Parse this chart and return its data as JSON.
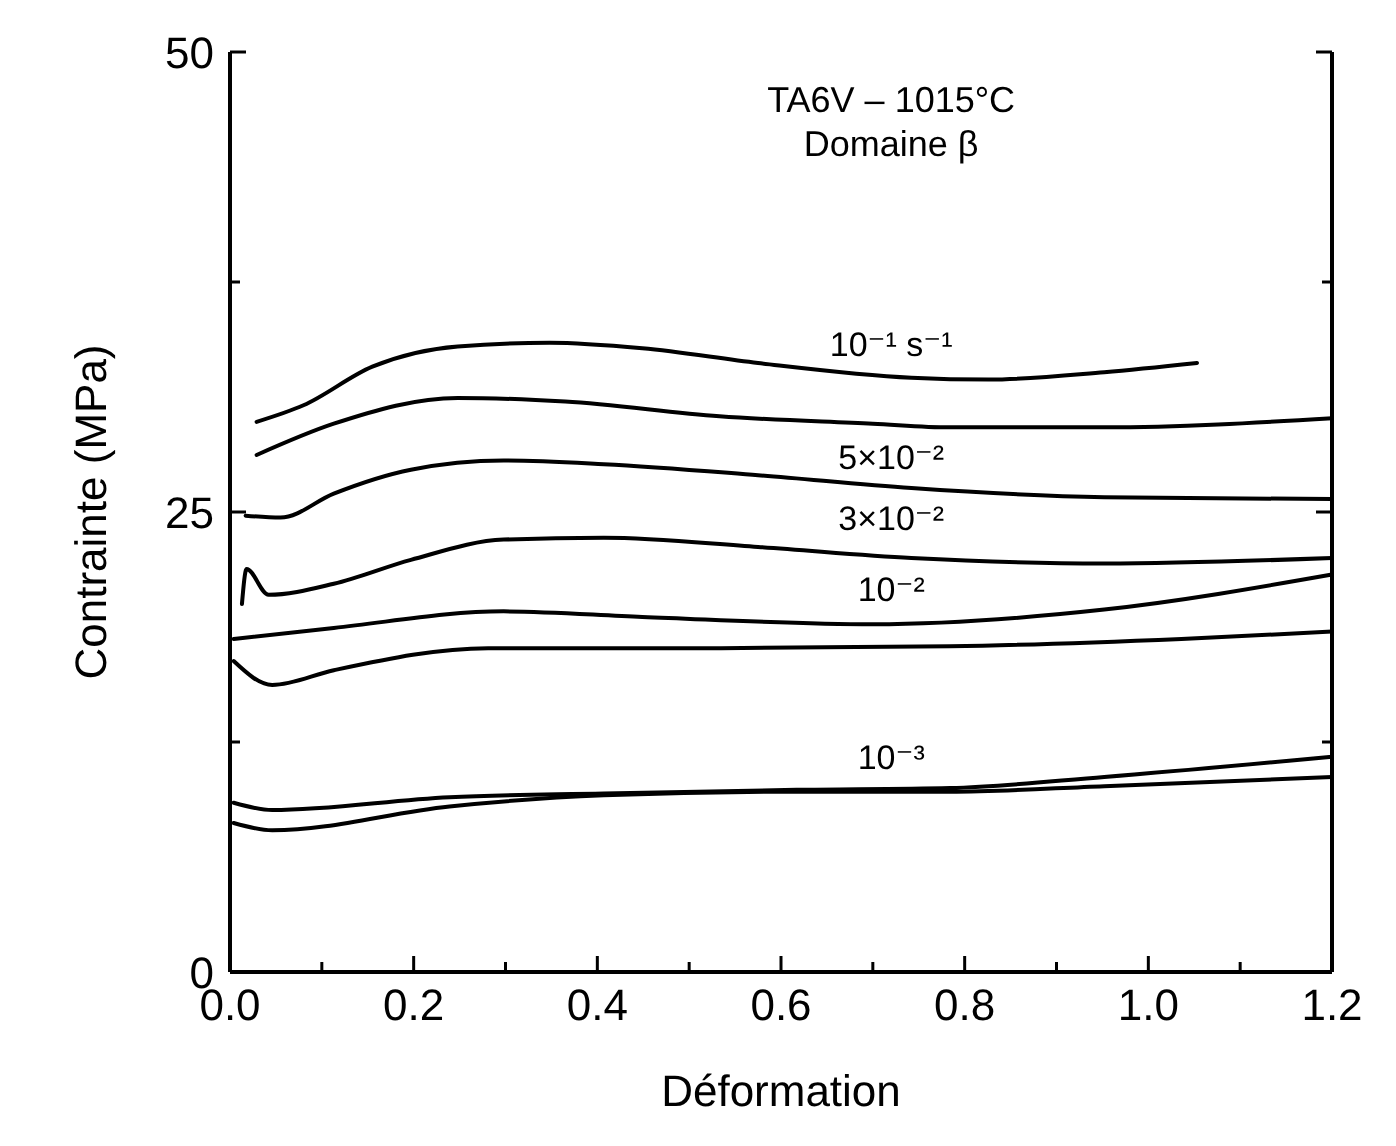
{
  "chart_data": {
    "type": "line",
    "title": "TA6V – 1015°C",
    "subtitle": "Domaine β",
    "xlabel": "Déformation",
    "ylabel": "Contrainte (MPa)",
    "xlim": [
      0,
      1.2
    ],
    "ylim": [
      0,
      50
    ],
    "xticks": [
      {
        "value": 0,
        "label": "0.0"
      },
      {
        "value": 0.1,
        "label": null
      },
      {
        "value": 0.2,
        "label": "0.2"
      },
      {
        "value": 0.3,
        "label": null
      },
      {
        "value": 0.4,
        "label": "0.4"
      },
      {
        "value": 0.5,
        "label": null
      },
      {
        "value": 0.6,
        "label": "0.6"
      },
      {
        "value": 0.7,
        "label": null
      },
      {
        "value": 0.8,
        "label": "0.8"
      },
      {
        "value": 0.9,
        "label": null
      },
      {
        "value": 1,
        "label": "1.0"
      },
      {
        "value": 1.1,
        "label": null
      },
      {
        "value": 1.2,
        "label": "1.2"
      }
    ],
    "yticks": [
      0,
      {
        "value": 12.5,
        "label": null
      },
      25,
      {
        "value": 37.5,
        "label": null
      },
      50
    ],
    "grid": false,
    "marker": "none",
    "line_style": "solid",
    "series": [
      {
        "name": "10⁻¹ s⁻¹",
        "color": "#000000",
        "x": [
          0.029,
          0.08,
          0.155,
          0.248,
          0.348,
          0.449,
          0.575,
          0.742,
          0.826,
          0.952,
          1.053
        ],
        "values": [
          29.9,
          30.8,
          32.9,
          34.0,
          34.2,
          33.9,
          33.1,
          32.3,
          32.2,
          32.6,
          33.1
        ]
      },
      {
        "name": "5×10⁻²",
        "color": "#000000",
        "x": [
          0.029,
          0.113,
          0.248,
          0.365,
          0.533,
          0.7,
          0.784,
          0.952,
          1.2
        ],
        "values": [
          28.1,
          29.8,
          31.2,
          31.0,
          30.2,
          29.8,
          29.6,
          29.6,
          30.1
        ]
      },
      {
        "name": "3×10⁻²",
        "color": "#000000",
        "x": [
          0.017,
          0.055,
          0.113,
          0.197,
          0.298,
          0.407,
          0.575,
          0.742,
          0.952,
          1.2
        ],
        "values": [
          24.8,
          24.7,
          26.0,
          27.3,
          27.8,
          27.6,
          27.0,
          26.3,
          25.8,
          25.7
        ]
      },
      {
        "name": "10⁻²",
        "color": "#000000",
        "x": [
          0.013,
          0.018,
          0.042,
          0.113,
          0.197,
          0.298,
          0.407,
          0.575,
          0.742,
          0.952,
          1.2
        ],
        "values": [
          20.0,
          21.9,
          20.5,
          21.1,
          22.4,
          23.5,
          23.6,
          23.1,
          22.5,
          22.2,
          22.5
        ]
      },
      {
        "color": "#000000",
        "x": [
          0.004,
          0.113,
          0.298,
          0.449,
          0.7,
          0.952,
          1.2
        ],
        "values": [
          18.1,
          18.7,
          19.6,
          19.3,
          18.9,
          19.7,
          21.6
        ]
      },
      {
        "color": "#000000",
        "x": [
          0.004,
          0.046,
          0.113,
          0.281,
          0.533,
          0.784,
          1.036,
          1.2
        ],
        "values": [
          16.9,
          15.6,
          16.4,
          17.6,
          17.6,
          17.7,
          18.1,
          18.5
        ]
      },
      {
        "name": "10⁻³",
        "color": "#000000",
        "x": [
          0.004,
          0.046,
          0.239,
          0.407,
          0.617,
          0.784,
          0.952,
          1.2
        ],
        "values": [
          9.2,
          8.8,
          9.5,
          9.7,
          9.9,
          10.0,
          10.6,
          11.7
        ]
      },
      {
        "color": "#000000",
        "x": [
          0.004,
          0.046,
          0.239,
          0.407,
          0.617,
          0.784,
          0.952,
          1.2
        ],
        "values": [
          8.1,
          7.7,
          9.0,
          9.6,
          9.8,
          9.8,
          10.1,
          10.6
        ]
      }
    ]
  }
}
